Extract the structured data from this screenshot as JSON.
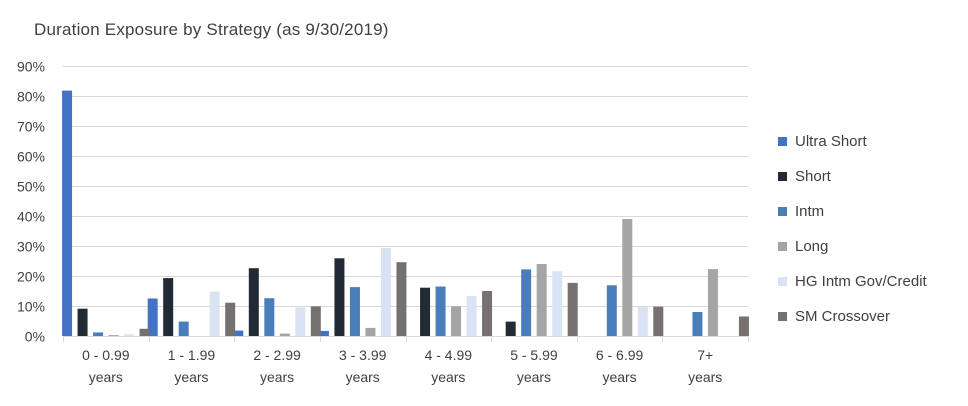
{
  "chart_data": {
    "type": "bar",
    "title": "Duration Exposure by Strategy (as 9/30/2019)",
    "xlabel": "",
    "ylabel": "",
    "ylim": [
      0,
      90
    ],
    "yticks": [
      0,
      10,
      20,
      30,
      40,
      50,
      60,
      70,
      80,
      90
    ],
    "ytick_format": "percent",
    "grid": "horizontal",
    "legend_position": "right",
    "categories": [
      [
        "0 - 0.99",
        "years"
      ],
      [
        "1 - 1.99",
        "years"
      ],
      [
        "2 - 2.99",
        "years"
      ],
      [
        "3 - 3.99",
        "years"
      ],
      [
        "4 - 4.99",
        "years"
      ],
      [
        "5 - 5.99",
        "years"
      ],
      [
        "6 - 6.99",
        "years"
      ],
      [
        "7+",
        "years"
      ]
    ],
    "series": [
      {
        "name": "Ultra Short",
        "color": "#4472C4",
        "values": [
          81.8,
          12.5,
          1.8,
          1.7,
          0,
          0,
          0,
          0
        ]
      },
      {
        "name": "Short",
        "color": "#222A35",
        "values": [
          9.1,
          19.3,
          22.6,
          25.9,
          16.1,
          4.8,
          0,
          0
        ]
      },
      {
        "name": "Intm",
        "color": "#4A7EBB",
        "values": [
          1.2,
          4.8,
          12.6,
          16.3,
          16.5,
          22.2,
          16.9,
          8.0
        ]
      },
      {
        "name": "Long",
        "color": "#A5A5A5",
        "values": [
          0.3,
          0,
          0.8,
          2.7,
          9.9,
          24.0,
          39.0,
          22.3
        ]
      },
      {
        "name": "HG Intm Gov/Credit",
        "color": "#DAE3F3",
        "values": [
          0.6,
          14.8,
          9.5,
          29.4,
          13.3,
          21.6,
          9.8,
          0
        ]
      },
      {
        "name": "SM Crossover",
        "color": "#767171",
        "values": [
          2.4,
          11.1,
          9.9,
          24.6,
          15.0,
          17.7,
          9.8,
          6.5
        ]
      }
    ]
  }
}
